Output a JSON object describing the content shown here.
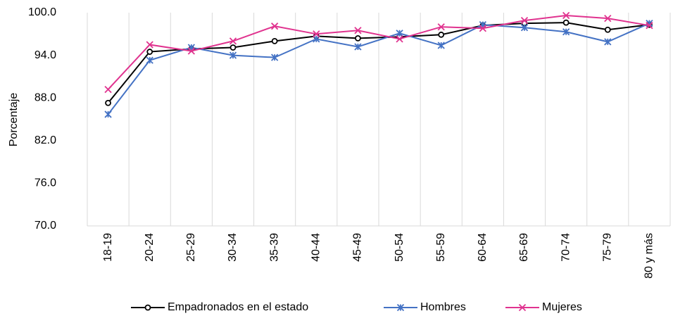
{
  "chart_data": {
    "type": "line",
    "y_label": "Porcentaje",
    "categories": [
      "18-19",
      "20-24",
      "25-29",
      "30-34",
      "35-39",
      "40-44",
      "45-49",
      "50-54",
      "55-59",
      "60-64",
      "65-69",
      "70-74",
      "75-79",
      "80 y más"
    ],
    "series": [
      {
        "name": "Empadronados en el estado",
        "color": "#000000",
        "marker": "circle",
        "values": [
          87.3,
          94.5,
          94.9,
          95.1,
          96.0,
          96.7,
          96.4,
          96.6,
          96.9,
          98.2,
          98.5,
          98.6,
          97.6,
          98.3
        ]
      },
      {
        "name": "Hombres",
        "color": "#4472c4",
        "marker": "star",
        "values": [
          85.7,
          93.3,
          95.1,
          94.0,
          93.7,
          96.3,
          95.2,
          97.1,
          95.4,
          98.3,
          97.9,
          97.3,
          95.9,
          98.5
        ]
      },
      {
        "name": "Mujeres",
        "color": "#e0338f",
        "marker": "x",
        "values": [
          89.2,
          95.5,
          94.6,
          96.0,
          98.1,
          97.0,
          97.5,
          96.3,
          98.0,
          97.8,
          98.9,
          99.6,
          99.2,
          98.2
        ]
      }
    ],
    "ylim": [
      70,
      100
    ],
    "yticks": [
      {
        "value": 70,
        "label": "70.0"
      },
      {
        "value": 76,
        "label": "76.0"
      },
      {
        "value": 82,
        "label": "82.0"
      },
      {
        "value": 88,
        "label": "88.0"
      },
      {
        "value": 94,
        "label": "94.0"
      },
      {
        "value": 100,
        "label": "100.0"
      }
    ],
    "grid": "vertical",
    "legend": "bottom"
  }
}
